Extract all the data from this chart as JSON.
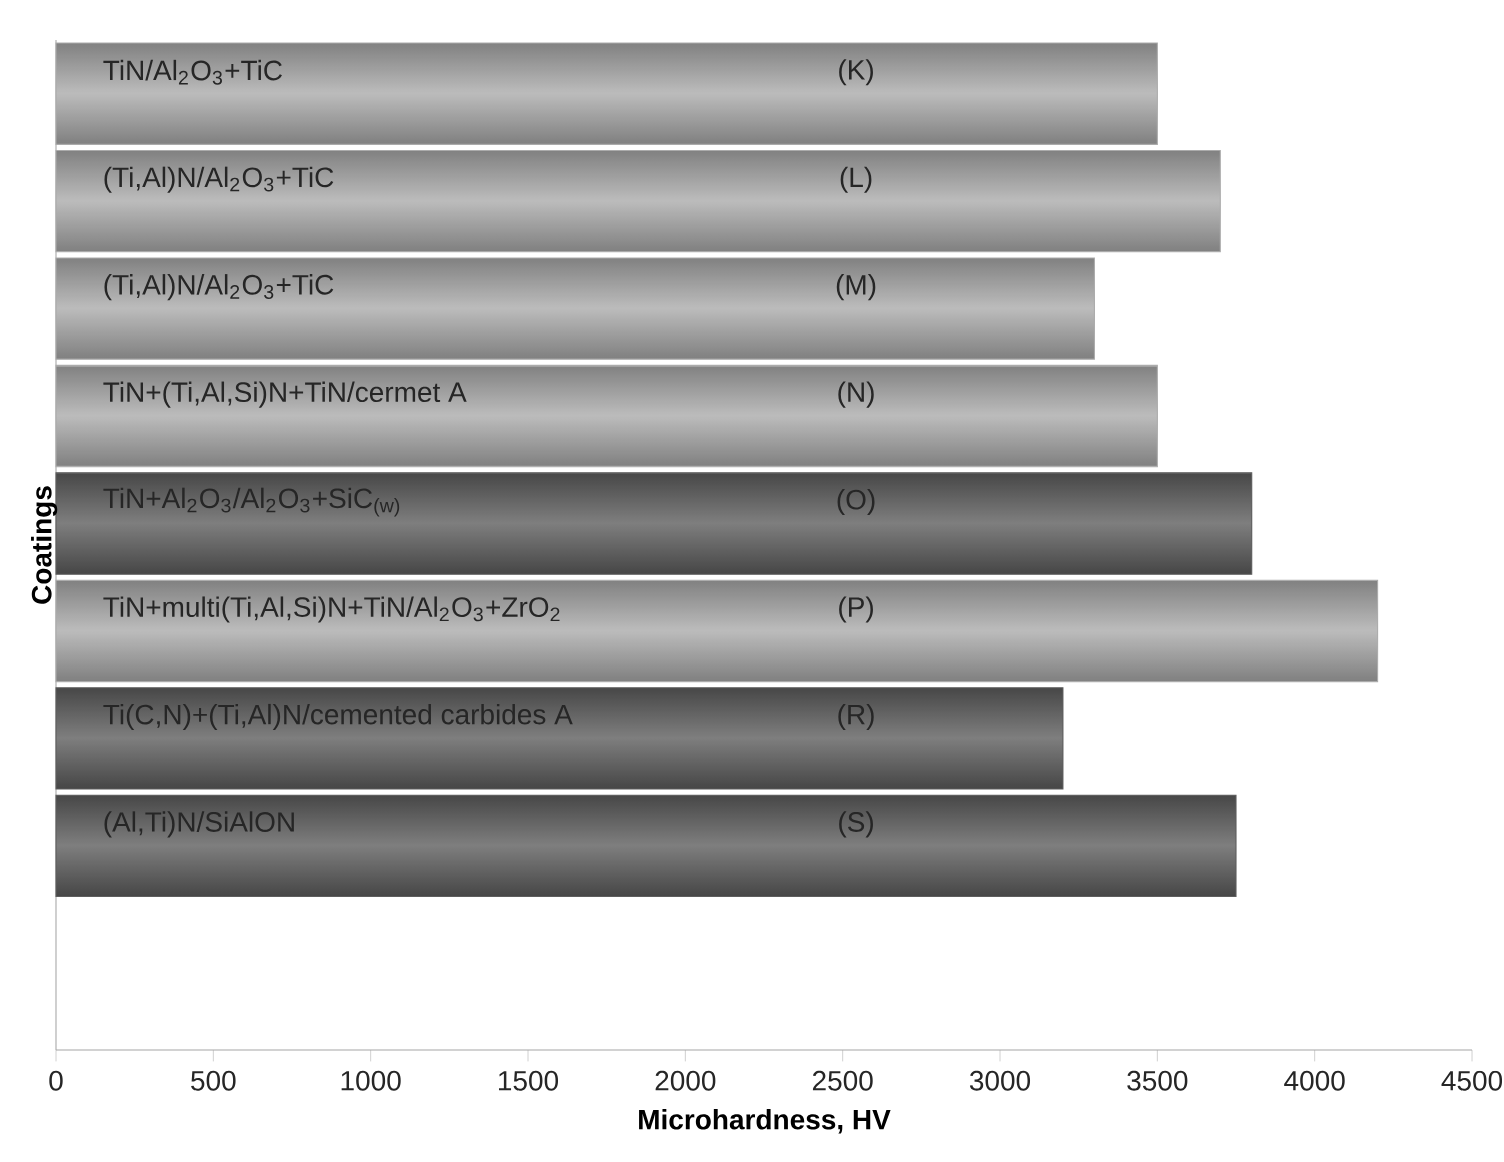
{
  "chart_data": {
    "type": "bar",
    "orientation": "horizontal",
    "xlabel": "Microhardness, HV",
    "ylabel": "Coatings",
    "categories": [
      "TiN/Al$_{2}$O$_{3}$+TiC",
      "(Ti,Al)N/Al$_{2}$O$_{3}$+TiC",
      "(Ti,Al)N/Al$_{2}$O$_{3}$+TiC",
      "TiN+(Ti,Al,Si)N+TiN/cermet A",
      "TiN+Al$_{2}$O$_{3}$/Al$_{2}$O$_{3}$+SiC$_{(w)}$",
      "TiN+multi(Ti,Al,Si)N+TiN/Al$_{2}$O$_{3}$+ZrO$_{2}$",
      "Ti(C,N)+(Ti,Al)N/cemented carbides A",
      "(Al,Ti)N/SiAlON"
    ],
    "values": [
      3500,
      3700,
      3300,
      3500,
      3800,
      4200,
      3200,
      3750
    ],
    "colors": [
      "#ababab",
      "#ababab",
      "#ababab",
      "#ababab",
      "#5e5e5e",
      "#ababab",
      "#5e5e5e",
      "#5e5e5e"
    ],
    "xlim": [
      0,
      4500
    ],
    "xticks": [
      0,
      500,
      1000,
      1500,
      2000,
      2500,
      3000,
      3500,
      4000,
      4500
    ],
    "tick_labels": "x",
    "grid": false,
    "annotations": [
      "(K)",
      "(L)",
      "(M)",
      "(N)",
      "(O)",
      "(P)",
      "(R)",
      "(S)"
    ]
  }
}
